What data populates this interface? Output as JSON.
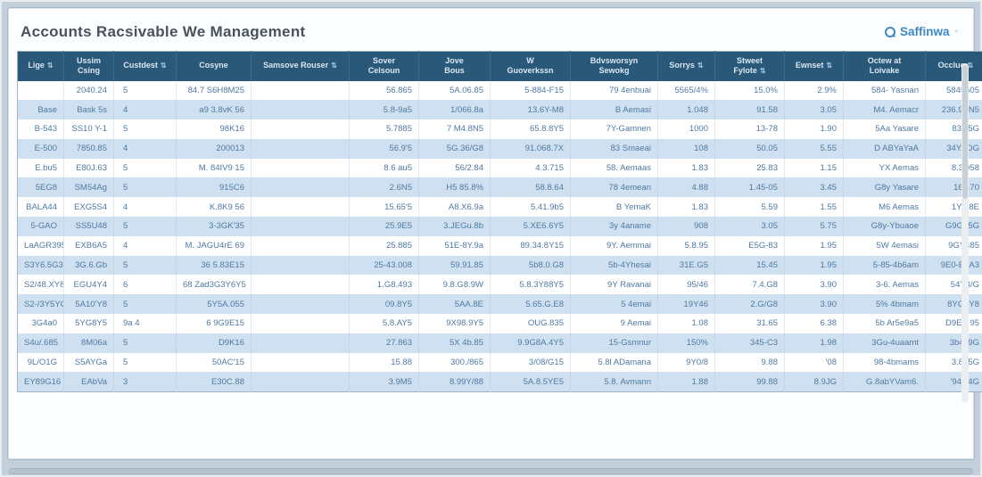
{
  "page": {
    "title": "Accounts Racsivable We Management"
  },
  "search": {
    "label": "Saffinwa",
    "chevron": "◦"
  },
  "ui": {
    "sort_glyph": "⇅"
  },
  "colors": {
    "header_bg": "#2a5878",
    "stripe": "#cfe1f0",
    "cell_text": "#4f79a3",
    "accent_blue": "#3f88c5",
    "title_text": "#4a525e",
    "outer_bg": "#c3cfda"
  },
  "table": {
    "headers": [
      {
        "label": "Lige",
        "sort": true
      },
      {
        "label": "Ussim\nCsing",
        "sort": false
      },
      {
        "label": "Custdest",
        "sort": true
      },
      {
        "label": "Cosyne",
        "sort": false
      },
      {
        "label": "Samsove Rouser",
        "sort": true
      },
      {
        "label": "Sover\nCelsoun",
        "sort": false
      },
      {
        "label": "Jove\nBous",
        "sort": false
      },
      {
        "label": "W\nGuoverkssn",
        "sort": false
      },
      {
        "label": "Bdvsworsyn\nSewokg",
        "sort": false
      },
      {
        "label": "Sorrys",
        "sort": true
      },
      {
        "label": "Stweet\nFylote",
        "sort": true
      },
      {
        "label": "Ewnset",
        "sort": true
      },
      {
        "label": "Octew at\nLoivake",
        "sort": false
      },
      {
        "label": "Occlue",
        "sort": true
      }
    ],
    "rows": [
      [
        "",
        "2040.24",
        "5",
        "84.7 S6H8M25",
        "",
        "56.865",
        "5A.06.85",
        "5-884-F15",
        "79 4enbuai",
        "5565/4%",
        "15.0%",
        "2.9%",
        "584- Yasnan",
        "5845605"
      ],
      [
        "Base",
        "Bask 5s",
        "4",
        "a9 3.8vK 56",
        "",
        "5.8-9a5",
        "1/066.8a",
        "13.6Y-M8",
        "B Aemasi",
        "1.048",
        "91.58",
        "3.05",
        "M4. Aemacr",
        "236.9VN5"
      ],
      [
        "B-543",
        "SS10 Y-1",
        "5",
        "98K16",
        "",
        "5.7885",
        "7 M4.8N5",
        "65.8.8Y5",
        "7Y-Gamnen",
        "1000",
        "13-78",
        "1.90",
        "5Aa Yasare",
        "83O5G"
      ],
      [
        "E-500",
        "7850.85",
        "4",
        "200013",
        "",
        "56.9'5",
        "5G.36/G8",
        "91.068.7X",
        "83 Smaeai",
        "108",
        "50.05",
        "5.55",
        "D ABYaYaA",
        "34YADG"
      ],
      [
        "E.bu5",
        "E80J.63",
        "5",
        "M. 84IV9 15",
        "",
        "8.6 au5",
        "56/2.84",
        "4.3.715",
        "58. Aemaas",
        "1.83",
        "25.83",
        "1.15",
        "YX Aemas",
        "8.3O58"
      ],
      [
        "5EG8",
        "SM54Ag",
        "5",
        "915C6",
        "",
        "2.6N5",
        "H5 85.8%",
        "58.8.64",
        "78 4emean",
        "4.88",
        "1.45-05",
        "3.45",
        "G8y Yasare",
        "168.70"
      ],
      [
        "BALA44",
        "EXG5S4",
        "4",
        "K.8K9 56",
        "",
        "15.65'5",
        "A8.X6.9a",
        "5.41.9b5",
        "B YemaK",
        "1.83",
        "5.59",
        "1.55",
        "M6 Aemas",
        "1Y5.8E"
      ],
      [
        "5-GAO",
        "SS5U48",
        "5",
        "3-3GK'35",
        "",
        "25.9E5",
        "3.JEGu.8b",
        "5.XE6.6Y5",
        "3y 4aname",
        "908",
        "3.05",
        "5.75",
        "G8y-Ybuaoe",
        "G9G35G"
      ],
      [
        "LaAGR395",
        "EXB6A5",
        "4",
        "M. JAGU4rE 69",
        "",
        "25.885",
        "51E-8Y.9a",
        "89.34.8Y15",
        "9Y. Aemmai",
        "5.8.95",
        "E5G-83",
        "1.95",
        "5W 4emasi",
        "9GY485"
      ],
      [
        "S3Y6.5G3",
        "3G.6.Gb",
        "5",
        "36 5.83E15",
        "",
        "25-43.008",
        "59.91.85",
        "5b8.0.G8",
        "5b-4Yhesai",
        "31E.G5",
        "15.45",
        "1.95",
        "5-85-4b6am",
        "9E0-E5A3"
      ],
      [
        "S2/48.XY8",
        "EGU4Y4",
        "6",
        "68 Zad3G3Y6Y5",
        "",
        "1.G8.493",
        "9.8.G8.9W",
        "5.8.3Y88Y5",
        "9Y Ravanai",
        "95/46",
        "7.4.G8",
        "3.90",
        "3-6. Aemas",
        "54Y8/G"
      ],
      [
        "S2-/3Y5YG",
        "5A10'Y8",
        "5",
        "5Y5A.055",
        "",
        "09.8Y5",
        "5AA.8E",
        "5.65.G.E8",
        "5 4emai",
        "19Y46",
        "2.G/G8",
        "3.90",
        "5% 4bmam",
        "8YG0Y8"
      ],
      [
        "3G4a0",
        "5YG8Y5",
        "9a 4",
        "6 9G9E15",
        "",
        "5.8.AY5",
        "9X98.9Y5",
        "OUG.835",
        "9 Aemai",
        "1.08",
        "31.65",
        "6.38",
        "5b Ar5e9a5",
        "D9EX 95"
      ],
      [
        "S4u/.685",
        "8M06a",
        "5",
        "D9K16",
        "",
        "27.863",
        "5X 4b.85",
        "9.9G8A.4Y5",
        "15-Gsmnur",
        "150%",
        "345-C3",
        "1.98",
        "3Gu-4uaamt",
        "3b4J9G"
      ],
      [
        "9L/O1G",
        "S5AYGa",
        "5",
        "50AC'15",
        "",
        "15.88",
        "300./865",
        "3/08/G15",
        "5.8l ADamana",
        "9Y0/8",
        "9.88",
        "'08",
        "98-4bmams",
        "3.8b5G"
      ],
      [
        "EY89G16",
        "EAbVa",
        "3",
        "E30C.88",
        "",
        "3.9M5",
        "8.99Y/88",
        "5A.8.5YE5",
        "5.8. Avmann",
        "1.88",
        "99.88",
        "8.9JG",
        "G.8abYVam6.",
        "'94G4G"
      ]
    ]
  }
}
